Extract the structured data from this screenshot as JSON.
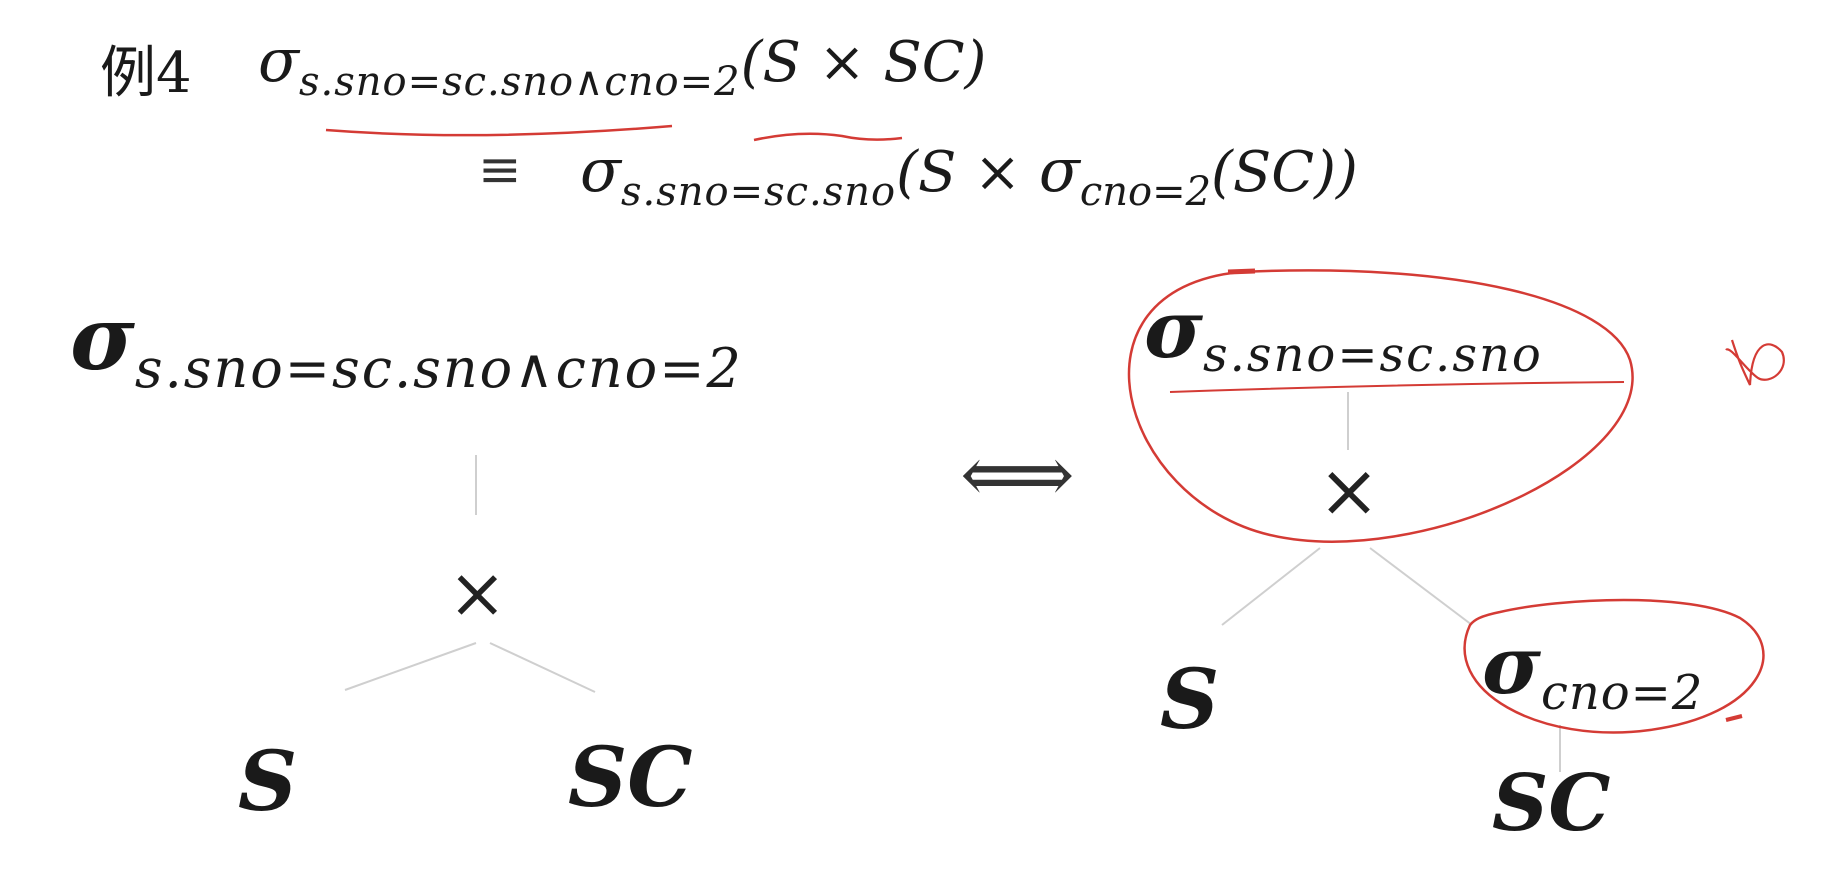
{
  "title": {
    "example_label": "例4",
    "line1_sigma": "σ",
    "line1_sub": "s.sno=sc.sno∧cno=2",
    "line1_args": "(S × SC)",
    "line2_equiv": "≡",
    "line2_sigma": "σ",
    "line2_sub": "s.sno=sc.sno",
    "line2_args_open": "(S × ",
    "line2_inner_sigma": "σ",
    "line2_inner_sub": "cno=2",
    "line2_inner_args": "(SC))"
  },
  "left_tree": {
    "root_sigma": "σ",
    "root_sub": "s.sno=sc.sno∧cno=2",
    "cross": "×",
    "left_leaf": "S",
    "right_leaf": "SC"
  },
  "equivalence_symbol": "⟺",
  "right_tree": {
    "root_sigma": "σ",
    "root_sub": "s.sno=sc.sno",
    "cross": "×",
    "left_leaf": "S",
    "inner_sigma": "σ",
    "inner_sub": "cno=2",
    "inner_leaf": "SC"
  },
  "annotation_colors": {
    "pen": "#d43b35",
    "tree_edge": "#cfcfcf"
  }
}
